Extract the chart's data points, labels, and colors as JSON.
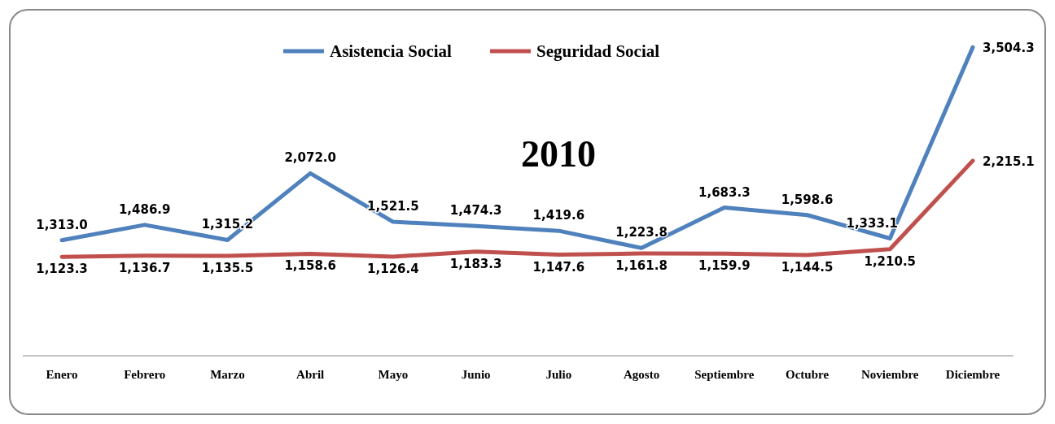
{
  "chart_data": {
    "type": "line",
    "categories": [
      "Enero",
      "Febrero",
      "Marzo",
      "Abril",
      "Mayo",
      "Junio",
      "Julio",
      "Agosto",
      "Septiembre",
      "Octubre",
      "Noviembre",
      "Diciembre"
    ],
    "series": [
      {
        "name": "Asistencia Social",
        "color": "#4f81bd",
        "values": [
          1313.0,
          1486.9,
          1315.2,
          2072.0,
          1521.5,
          1474.3,
          1419.6,
          1223.8,
          1683.3,
          1598.6,
          1333.1,
          3504.3
        ],
        "value_labels": [
          "1,313.0",
          "1,486.9",
          "1,315.2",
          "2,072.0",
          "1,521.5",
          "1,474.3",
          "1,419.6",
          "1,223.8",
          "1,683.3",
          "1,598.6",
          "1,333.1",
          "3,504.3"
        ]
      },
      {
        "name": "Seguridad Social",
        "color": "#c0504d",
        "values": [
          1123.3,
          1136.7,
          1135.5,
          1158.6,
          1126.4,
          1183.3,
          1147.6,
          1161.8,
          1159.9,
          1144.5,
          1210.5,
          2215.1
        ],
        "value_labels": [
          "1,123.3",
          "1,136.7",
          "1,135.5",
          "1,158.6",
          "1,126.4",
          "1,183.3",
          "1,147.6",
          "1,161.8",
          "1,159.9",
          "1,144.5",
          "1,210.5",
          "2,215.1"
        ]
      }
    ],
    "tick_labels": "x",
    "legend": "top",
    "marker": "none",
    "line_style": "solid",
    "annotations": [
      "2010"
    ]
  }
}
